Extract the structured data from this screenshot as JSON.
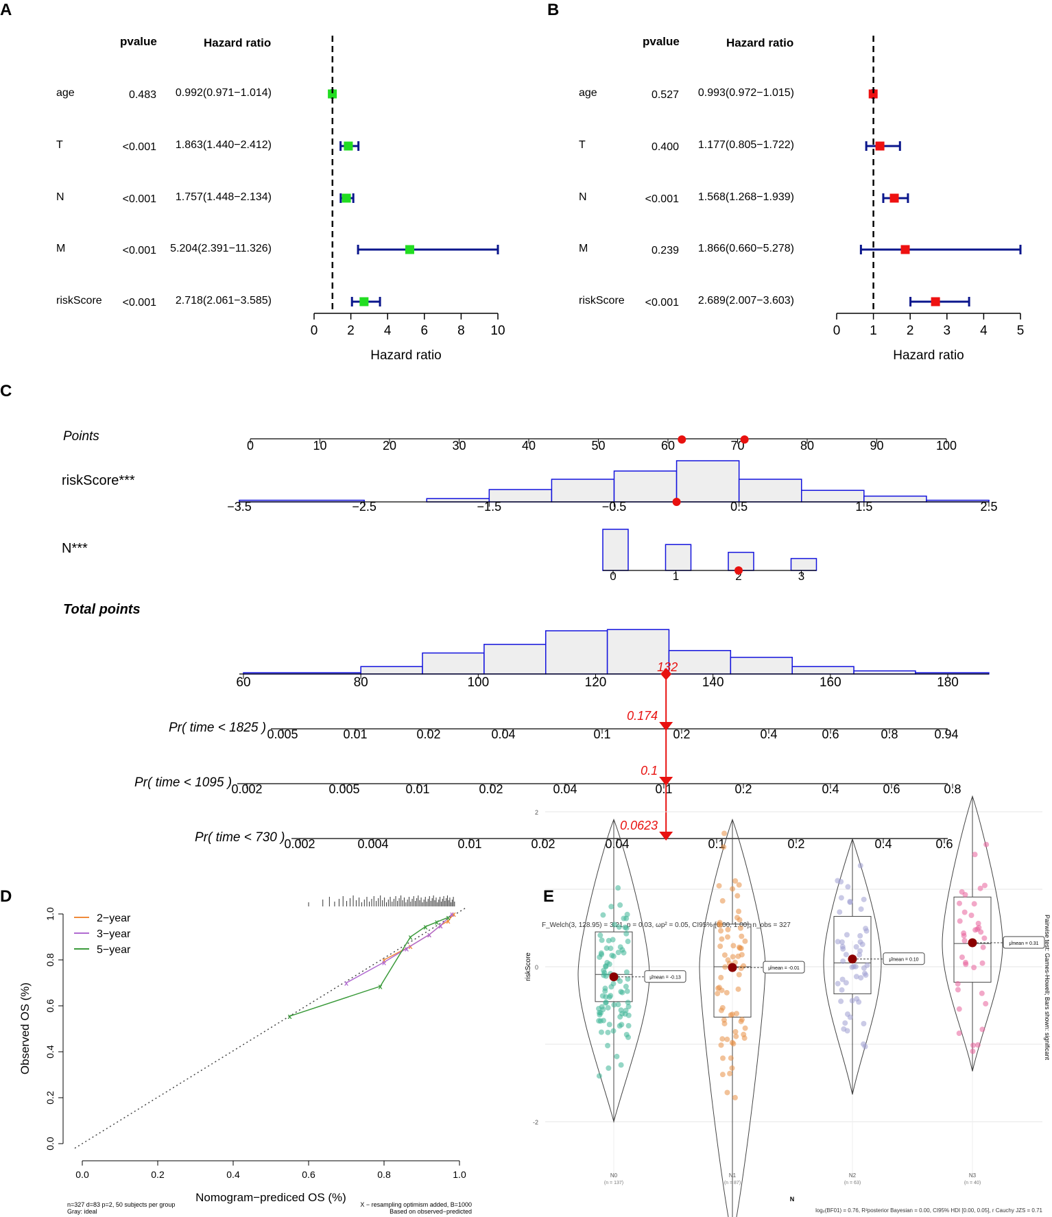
{
  "colors": {
    "forest_ci": "#0a168c",
    "forest_a_box": "#22dd22",
    "forest_b_box": "#ee1111",
    "nomo_bar": "#1212dd",
    "nomo_fill": "#eeeeee",
    "nomo_red": "#e8110f",
    "cal_2y": "#f08a3a",
    "cal_3y": "#b06ad0",
    "cal_5y": "#3a9a3a",
    "violin_n0": "#3cb496",
    "violin_n1": "#e89046",
    "violin_n2": "#9e9ed2",
    "violin_n3": "#e8609a",
    "mean_dot": "#8b0000"
  },
  "chart_data": [
    {
      "panel": "A",
      "type": "forest",
      "col_pvalue": "pvalue",
      "col_hr": "Hazard ratio",
      "xlabel": "Hazard ratio",
      "xlim": [
        0,
        10
      ],
      "xticks": [
        "0",
        "2",
        "4",
        "6",
        "8",
        "10"
      ],
      "rows": [
        {
          "name": "age",
          "pvalue": "0.483",
          "hr_text": "0.992(0.971−1.014)",
          "hr": 0.992,
          "lo": 0.971,
          "hi": 1.014
        },
        {
          "name": "T",
          "pvalue": "<0.001",
          "hr_text": "1.863(1.440−2.412)",
          "hr": 1.863,
          "lo": 1.44,
          "hi": 2.412
        },
        {
          "name": "N",
          "pvalue": "<0.001",
          "hr_text": "1.757(1.448−2.134)",
          "hr": 1.757,
          "lo": 1.448,
          "hi": 2.134
        },
        {
          "name": "M",
          "pvalue": "<0.001",
          "hr_text": "5.204(2.391−11.326)",
          "hr": 5.204,
          "lo": 2.391,
          "hi": 11.326
        },
        {
          "name": "riskScore",
          "pvalue": "<0.001",
          "hr_text": "2.718(2.061−3.585)",
          "hr": 2.718,
          "lo": 2.061,
          "hi": 3.585
        }
      ]
    },
    {
      "panel": "B",
      "type": "forest",
      "col_pvalue": "pvalue",
      "col_hr": "Hazard ratio",
      "xlabel": "Hazard ratio",
      "xlim": [
        0,
        5
      ],
      "xticks": [
        "0",
        "1",
        "2",
        "3",
        "4",
        "5"
      ],
      "rows": [
        {
          "name": "age",
          "pvalue": "0.527",
          "hr_text": "0.993(0.972−1.015)",
          "hr": 0.993,
          "lo": 0.972,
          "hi": 1.015
        },
        {
          "name": "T",
          "pvalue": "0.400",
          "hr_text": "1.177(0.805−1.722)",
          "hr": 1.177,
          "lo": 0.805,
          "hi": 1.722
        },
        {
          "name": "N",
          "pvalue": "<0.001",
          "hr_text": "1.568(1.268−1.939)",
          "hr": 1.568,
          "lo": 1.268,
          "hi": 1.939
        },
        {
          "name": "M",
          "pvalue": "0.239",
          "hr_text": "1.866(0.660−5.278)",
          "hr": 1.866,
          "lo": 0.66,
          "hi": 5.278
        },
        {
          "name": "riskScore",
          "pvalue": "<0.001",
          "hr_text": "2.689(2.007−3.603)",
          "hr": 2.689,
          "lo": 2.007,
          "hi": 3.603
        }
      ]
    },
    {
      "panel": "C",
      "type": "nomogram",
      "points_label": "Points",
      "points_ticks": [
        "0",
        "10",
        "20",
        "30",
        "40",
        "50",
        "60",
        "70",
        "80",
        "90",
        "100"
      ],
      "risk_label": "riskScore***",
      "risk_ticks": [
        "−3.5",
        "−2.5",
        "−1.5",
        "−0.5",
        "0.5",
        "1.5",
        "2.5"
      ],
      "risk_hist": [
        {
          "lo": -3.5,
          "hi": -2.5,
          "h": 0.04
        },
        {
          "lo": -2.5,
          "hi": -2.0,
          "h": 0.0
        },
        {
          "lo": -2.0,
          "hi": -1.5,
          "h": 0.08
        },
        {
          "lo": -1.5,
          "hi": -1.0,
          "h": 0.3
        },
        {
          "lo": -1.0,
          "hi": -0.5,
          "h": 0.55
        },
        {
          "lo": -0.5,
          "hi": 0.0,
          "h": 0.75
        },
        {
          "lo": 0.0,
          "hi": 0.5,
          "h": 1.0
        },
        {
          "lo": 0.5,
          "hi": 1.0,
          "h": 0.55
        },
        {
          "lo": 1.0,
          "hi": 1.5,
          "h": 0.28
        },
        {
          "lo": 1.5,
          "hi": 2.0,
          "h": 0.14
        },
        {
          "lo": 2.0,
          "hi": 2.5,
          "h": 0.04
        }
      ],
      "risk_point": 0.0,
      "n_label": "N***",
      "n_ticks": [
        "0",
        "1",
        "2",
        "3"
      ],
      "n_hist": [
        {
          "x": 0,
          "h": 1.0
        },
        {
          "x": 1,
          "h": 0.63
        },
        {
          "x": 2,
          "h": 0.44
        },
        {
          "x": 3,
          "h": 0.29
        }
      ],
      "n_point": 2,
      "points_marks": [
        62,
        71
      ],
      "total_label": "Total points",
      "total_ticks": [
        "60",
        "80",
        "100",
        "120",
        "140",
        "160",
        "180"
      ],
      "total_hist": [
        {
          "lo": 60,
          "hi": 80,
          "h": 0.02
        },
        {
          "lo": 80,
          "hi": 90.5,
          "h": 0.12
        },
        {
          "lo": 90.5,
          "hi": 101,
          "h": 0.34
        },
        {
          "lo": 101,
          "hi": 111.5,
          "h": 0.48
        },
        {
          "lo": 111.5,
          "hi": 122,
          "h": 0.7
        },
        {
          "lo": 122,
          "hi": 132.5,
          "h": 0.72
        },
        {
          "lo": 132.5,
          "hi": 143,
          "h": 0.38
        },
        {
          "lo": 143,
          "hi": 153.5,
          "h": 0.27
        },
        {
          "lo": 153.5,
          "hi": 164,
          "h": 0.12
        },
        {
          "lo": 164,
          "hi": 174.5,
          "h": 0.05
        },
        {
          "lo": 174.5,
          "hi": 187,
          "h": 0.02
        }
      ],
      "total_value": "132",
      "prob_rows": [
        {
          "label": "Pr( time < 1825 )",
          "ticks": [
            "0.005",
            "0.01",
            "0.02",
            "0.04",
            "0.1",
            "0.2",
            "0.4",
            "0.6",
            "0.8",
            "0.94"
          ],
          "value": "0.174"
        },
        {
          "label": "Pr( time < 1095 )",
          "ticks": [
            "0.002",
            "0.005",
            "0.01",
            "0.02",
            "0.04",
            "0.1",
            "0.2",
            "0.4",
            "0.6",
            "0.8"
          ],
          "value": "0.1"
        },
        {
          "label": "Pr( time < 730 )",
          "ticks": [
            "0.002",
            "0.004",
            "0.01",
            "0.02",
            "0.04",
            "0.1",
            "0.2",
            "0.4",
            "0.6"
          ],
          "value": "0.0623"
        }
      ]
    },
    {
      "panel": "D",
      "type": "line",
      "xlabel": "Nomogram−prediced OS (%)",
      "ylabel": "Observed OS (%)",
      "xlim": [
        0,
        1
      ],
      "ylim": [
        0,
        1
      ],
      "xticks": [
        "0.0",
        "0.2",
        "0.4",
        "0.6",
        "0.8",
        "1.0"
      ],
      "yticks": [
        "0.0",
        "0.2",
        "0.4",
        "0.6",
        "0.8",
        "1.0"
      ],
      "series": [
        {
          "name": "2−year",
          "x": [
            0.8,
            0.87,
            0.92,
            0.95,
            0.97,
            0.985
          ],
          "y": [
            0.8,
            0.86,
            0.91,
            0.95,
            0.97,
            1.0
          ]
        },
        {
          "name": "3−year",
          "x": [
            0.7,
            0.8,
            0.86,
            0.92,
            0.95,
            0.98
          ],
          "y": [
            0.7,
            0.79,
            0.85,
            0.91,
            0.95,
            1.0
          ]
        },
        {
          "name": "5−year",
          "x": [
            0.55,
            0.79,
            0.87,
            0.91,
            0.94,
            0.97
          ],
          "y": [
            0.555,
            0.685,
            0.9,
            0.945,
            0.965,
            0.985
          ]
        }
      ],
      "footer_left_1": "n=327 d=83 p=2, 50 subjects per group",
      "footer_left_2": "Gray: ideal",
      "footer_right_1": "X − resampling optimism added, B=1000",
      "footer_right_2": "Based on observed−predicted"
    },
    {
      "panel": "E",
      "type": "violin",
      "title": "F_Welch(3, 128.95) = 3.21, p = 0.03, ωp² = 0.05, CI95% [0.00, 1.00], n_obs = 327",
      "xlabel": "N",
      "ylabel": "riskScore",
      "ylim": [
        -2.5,
        2.5
      ],
      "yticks": [
        "2",
        "0",
        "-2"
      ],
      "groups": [
        {
          "name": "N0",
          "n": "(n = 137)",
          "mean": -0.13,
          "mean_label": "μ̂mean = -0.13",
          "q1": -0.45,
          "med": -0.1,
          "q3": 0.45,
          "min": -2.0,
          "max": 1.9
        },
        {
          "name": "N1",
          "n": "(n = 87)",
          "mean": -0.01,
          "mean_label": "μ̂mean = -0.01",
          "q1": -0.65,
          "med": 0.0,
          "q3": 0.55,
          "min": -3.5,
          "max": 1.9
        },
        {
          "name": "N2",
          "n": "(n = 63)",
          "mean": 0.1,
          "mean_label": "μ̂mean = 0.10",
          "q1": -0.35,
          "med": 0.05,
          "q3": 0.65,
          "min": -1.65,
          "max": 1.65
        },
        {
          "name": "N3",
          "n": "(n = 40)",
          "mean": 0.31,
          "mean_label": "μ̂mean = 0.31",
          "q1": -0.2,
          "med": 0.3,
          "q3": 0.9,
          "min": -1.35,
          "max": 2.2
        }
      ],
      "side_note": "Pairwise test: Games-Howell; Bars shown: significant",
      "footer": "logₑ(BF01) = 0.76, R²posterior Bayesian = 0.00, CI95% HDI [0.00, 0.05], r Cauchy JZS = 0.71"
    }
  ]
}
